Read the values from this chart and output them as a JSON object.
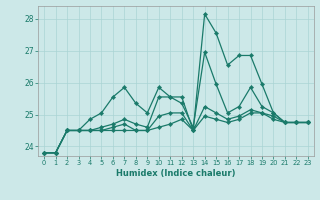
{
  "xlabel": "Humidex (Indice chaleur)",
  "bg_color": "#cce8e8",
  "line_color": "#1a7a6a",
  "grid_color": "#aad4d4",
  "xlim": [
    -0.5,
    23.5
  ],
  "ylim": [
    23.7,
    28.4
  ],
  "yticks": [
    24,
    25,
    26,
    27,
    28
  ],
  "xtick_labels": [
    "0",
    "1",
    "2",
    "3",
    "4",
    "5",
    "6",
    "7",
    "8",
    "9",
    "10",
    "11",
    "12",
    "13",
    "14",
    "15",
    "16",
    "17",
    "18",
    "19",
    "20",
    "21",
    "22",
    "23"
  ],
  "series": [
    [
      23.8,
      23.8,
      24.5,
      24.5,
      24.85,
      25.05,
      25.55,
      25.85,
      25.35,
      25.05,
      25.85,
      25.55,
      25.55,
      24.5,
      28.15,
      27.55,
      26.55,
      26.85,
      26.85,
      25.95,
      25.05,
      24.75,
      24.75,
      24.75
    ],
    [
      23.8,
      23.8,
      24.5,
      24.5,
      24.5,
      24.6,
      24.7,
      24.85,
      24.7,
      24.6,
      25.55,
      25.55,
      25.35,
      24.6,
      26.95,
      25.95,
      25.05,
      25.25,
      25.85,
      25.25,
      25.05,
      24.75,
      24.75,
      24.75
    ],
    [
      23.8,
      23.8,
      24.5,
      24.5,
      24.5,
      24.5,
      24.6,
      24.7,
      24.5,
      24.5,
      24.95,
      25.05,
      25.05,
      24.5,
      25.25,
      25.05,
      24.85,
      24.95,
      25.15,
      25.05,
      24.85,
      24.75,
      24.75,
      24.75
    ],
    [
      23.8,
      23.8,
      24.5,
      24.5,
      24.5,
      24.5,
      24.5,
      24.5,
      24.5,
      24.5,
      24.6,
      24.7,
      24.85,
      24.5,
      24.95,
      24.85,
      24.75,
      24.85,
      25.05,
      25.05,
      24.95,
      24.75,
      24.75,
      24.75
    ]
  ]
}
